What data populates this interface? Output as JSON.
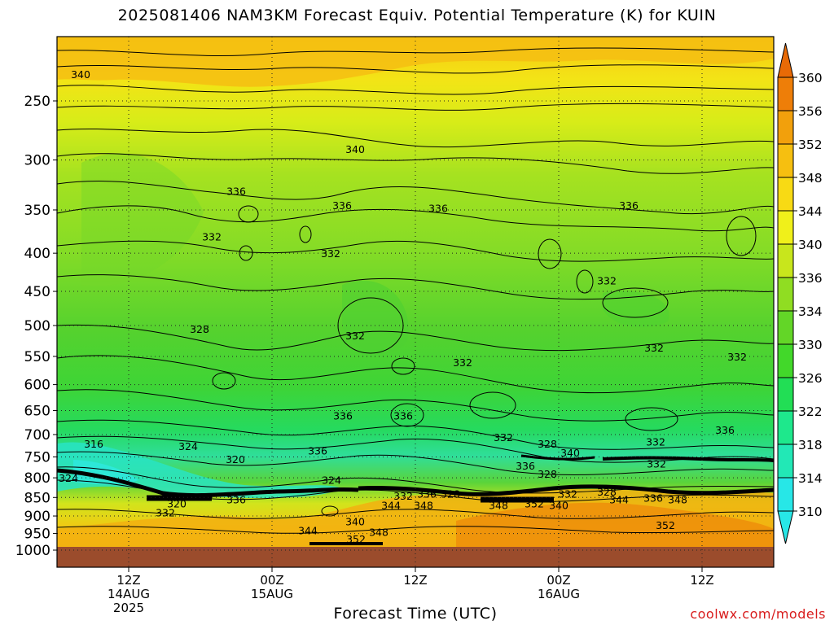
{
  "title": "2025081406 NAM3KM Forecast Equiv. Potential Temperature (K) for KUIN",
  "credit": "coolwx.com/models",
  "chart_data": {
    "type": "heatmap",
    "title": "2025081406 NAM3KM Forecast Equiv. Potential Temperature (K) for KUIN",
    "xlabel": "Forecast Time (UTC)",
    "ylabel": "",
    "units": "K",
    "y_pressure_ticks": [
      "250",
      "300",
      "350",
      "400",
      "450",
      "500",
      "550",
      "600",
      "650",
      "700",
      "750",
      "800",
      "850",
      "900",
      "950",
      "1000"
    ],
    "x_ticks": [
      {
        "label": [
          "12Z",
          "14AUG",
          "2025"
        ]
      },
      {
        "label": [
          "00Z",
          "15AUG"
        ]
      },
      {
        "label": [
          "12Z"
        ]
      },
      {
        "label": [
          "00Z",
          "16AUG"
        ]
      },
      {
        "label": [
          "12Z"
        ]
      }
    ],
    "colorbar": {
      "levels": [
        "310",
        "314",
        "318",
        "322",
        "326",
        "330",
        "334",
        "336",
        "340",
        "344",
        "348",
        "352",
        "356",
        "360"
      ],
      "colors": [
        "#27e7e7",
        "#22e8b6",
        "#1ee88c",
        "#22de55",
        "#42d82a",
        "#63d627",
        "#90dd22",
        "#c8e61c",
        "#f0f01a",
        "#f8da14",
        "#f6bf10",
        "#f2a00c",
        "#ee7e08",
        "#e86a06"
      ]
    },
    "contour_labels": [
      {
        "text": "340",
        "p": 230
      },
      {
        "text": "340",
        "p": 290
      },
      {
        "text": "336",
        "p": 330
      },
      {
        "text": "336",
        "p": 345
      },
      {
        "text": "336",
        "p": 348
      },
      {
        "text": "336",
        "p": 345
      },
      {
        "text": "332",
        "p": 380
      },
      {
        "text": "332",
        "p": 400
      },
      {
        "text": "332",
        "p": 435
      },
      {
        "text": "332",
        "p": 515
      },
      {
        "text": "332",
        "p": 535
      },
      {
        "text": "332",
        "p": 550
      },
      {
        "text": "328",
        "p": 505
      },
      {
        "text": "332",
        "p": 560
      },
      {
        "text": "336",
        "p": 660
      },
      {
        "text": "336",
        "p": 690
      },
      {
        "text": "336",
        "p": 660
      },
      {
        "text": "332",
        "p": 705
      },
      {
        "text": "332",
        "p": 715
      },
      {
        "text": "328",
        "p": 720
      },
      {
        "text": "336",
        "p": 735
      },
      {
        "text": "340",
        "p": 740
      },
      {
        "text": "336",
        "p": 770
      },
      {
        "text": "328",
        "p": 790
      },
      {
        "text": "332",
        "p": 765
      },
      {
        "text": "316",
        "p": 720
      },
      {
        "text": "324",
        "p": 725
      },
      {
        "text": "320",
        "p": 755
      },
      {
        "text": "324",
        "p": 805
      },
      {
        "text": "324",
        "p": 800
      },
      {
        "text": "320",
        "p": 865
      },
      {
        "text": "336",
        "p": 855
      },
      {
        "text": "332",
        "p": 890
      },
      {
        "text": "332",
        "p": 845
      },
      {
        "text": "336",
        "p": 840
      },
      {
        "text": "328",
        "p": 840
      },
      {
        "text": "344",
        "p": 870
      },
      {
        "text": "348",
        "p": 870
      },
      {
        "text": "348",
        "p": 870
      },
      {
        "text": "352",
        "p": 865
      },
      {
        "text": "340",
        "p": 870
      },
      {
        "text": "332",
        "p": 840
      },
      {
        "text": "328",
        "p": 835
      },
      {
        "text": "344",
        "p": 855
      },
      {
        "text": "336",
        "p": 850
      },
      {
        "text": "348",
        "p": 855
      },
      {
        "text": "340",
        "p": 915
      },
      {
        "text": "344",
        "p": 940
      },
      {
        "text": "348",
        "p": 945
      },
      {
        "text": "352",
        "p": 965
      },
      {
        "text": "352",
        "p": 925
      }
    ]
  }
}
